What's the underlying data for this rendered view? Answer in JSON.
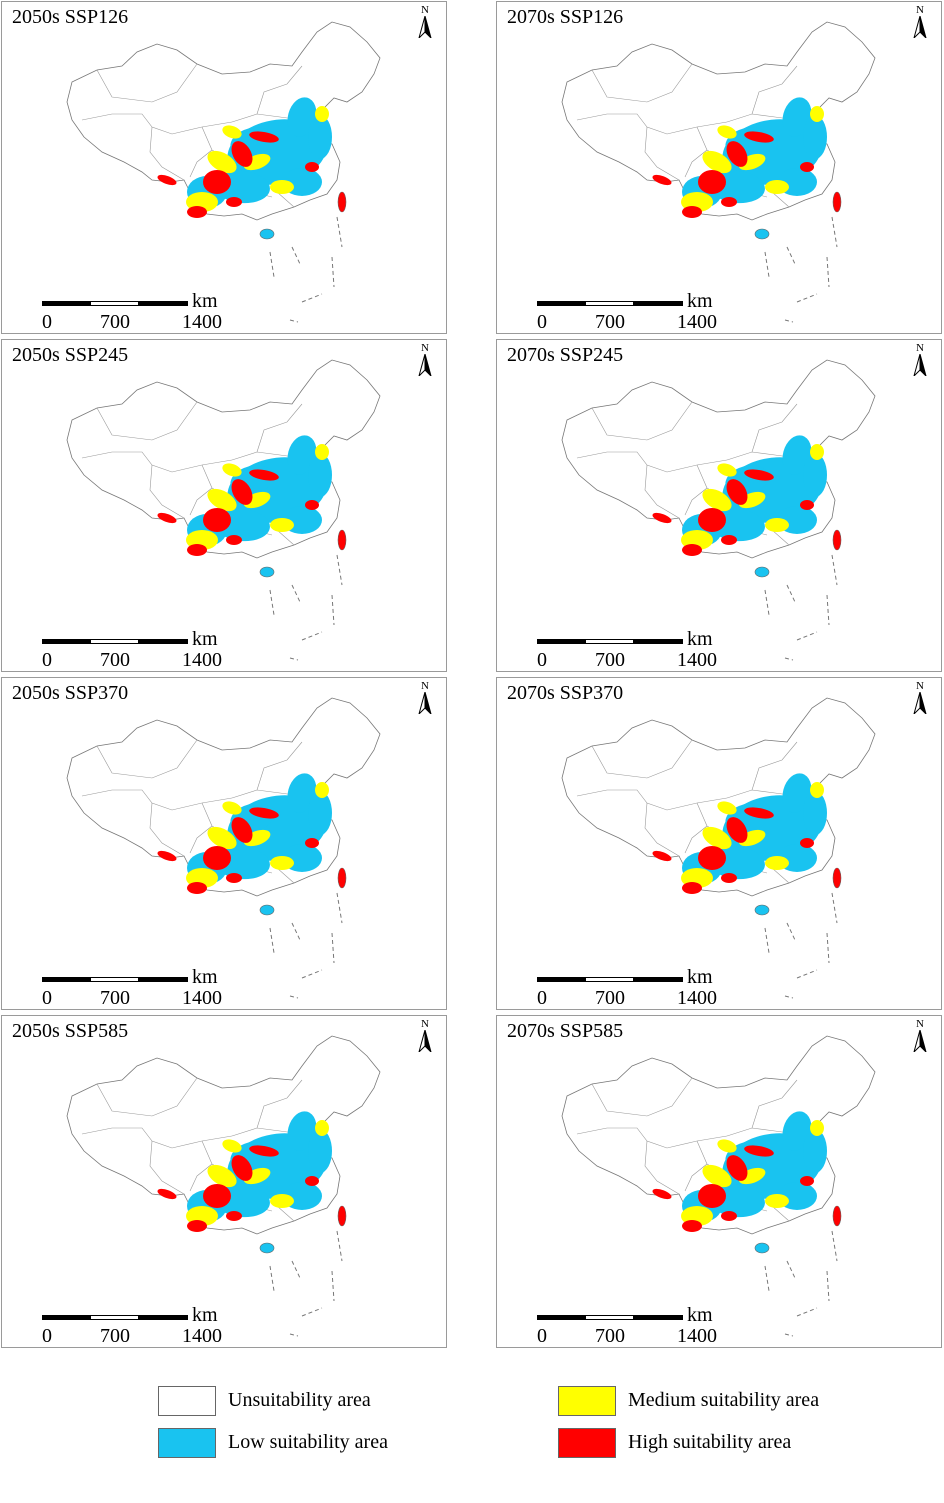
{
  "panels": [
    {
      "title": "2050s SSP126"
    },
    {
      "title": "2070s SSP126"
    },
    {
      "title": "2050s SSP245"
    },
    {
      "title": "2070s SSP245"
    },
    {
      "title": "2050s SSP370"
    },
    {
      "title": "2070s SSP370"
    },
    {
      "title": "2050s SSP585"
    },
    {
      "title": "2070s SSP585"
    }
  ],
  "north_arrow": {
    "label": "N"
  },
  "scale_bar": {
    "unit": "km",
    "labels": [
      "0",
      "700",
      "1400"
    ]
  },
  "legend": [
    {
      "label": "Unsuitability area",
      "color": "#ffffff"
    },
    {
      "label": "Low suitability area",
      "color": "#19c3f0"
    },
    {
      "label": "Medium suitability area",
      "color": "#ffff00"
    },
    {
      "label": "High suitability area",
      "color": "#ff0000"
    }
  ]
}
